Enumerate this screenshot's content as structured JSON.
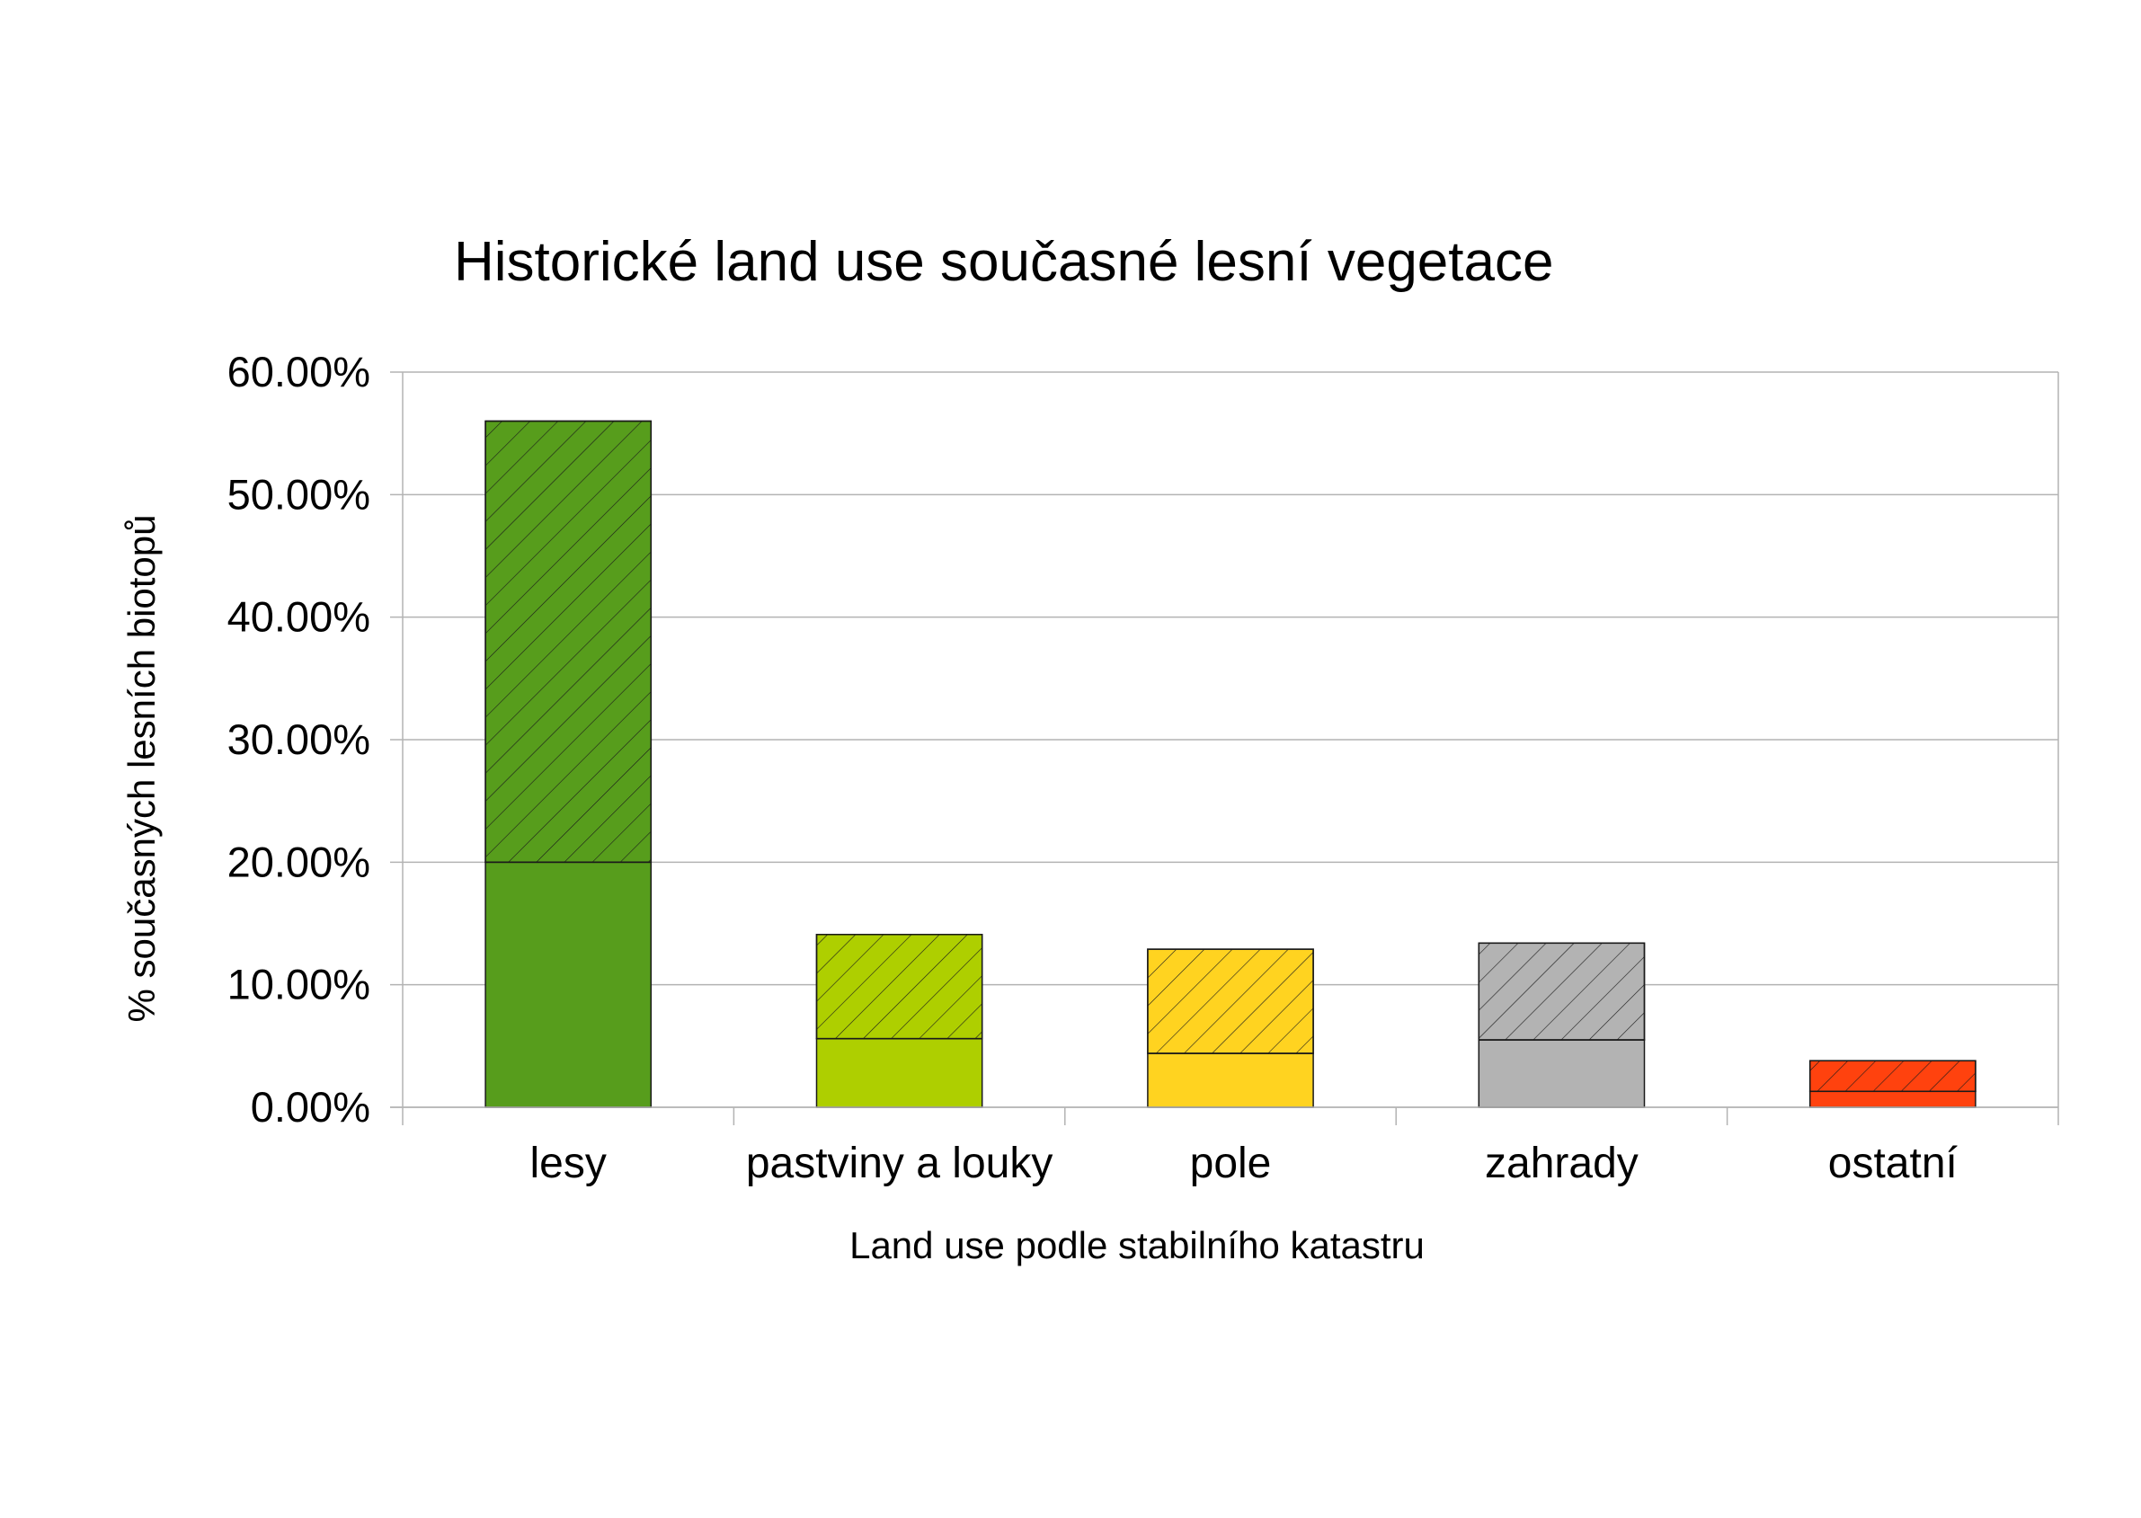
{
  "chart_data": {
    "type": "bar",
    "stacked": true,
    "title": "Historické land use současné lesní vegetace",
    "xlabel": "Land use podle stabilního katastru",
    "ylabel": "% současných lesních biotopů",
    "ylim": [
      0,
      60
    ],
    "yticks": [
      "0.00%",
      "10.00%",
      "20.00%",
      "30.00%",
      "40.00%",
      "50.00%",
      "60.00%"
    ],
    "grid": true,
    "legend": "none",
    "categories": [
      "lesy",
      "pastviny a louky",
      "pole",
      "zahrady",
      "ostatní"
    ],
    "colors": [
      "#579d1c",
      "#aecf00",
      "#ffd320",
      "#b3b3b3",
      "#ff420e"
    ],
    "series": [
      {
        "fill": "solid",
        "values": [
          20.0,
          5.6,
          4.4,
          5.5,
          1.3
        ]
      },
      {
        "fill": "hatched",
        "values": [
          36.0,
          8.5,
          8.5,
          7.9,
          2.5
        ]
      }
    ]
  }
}
